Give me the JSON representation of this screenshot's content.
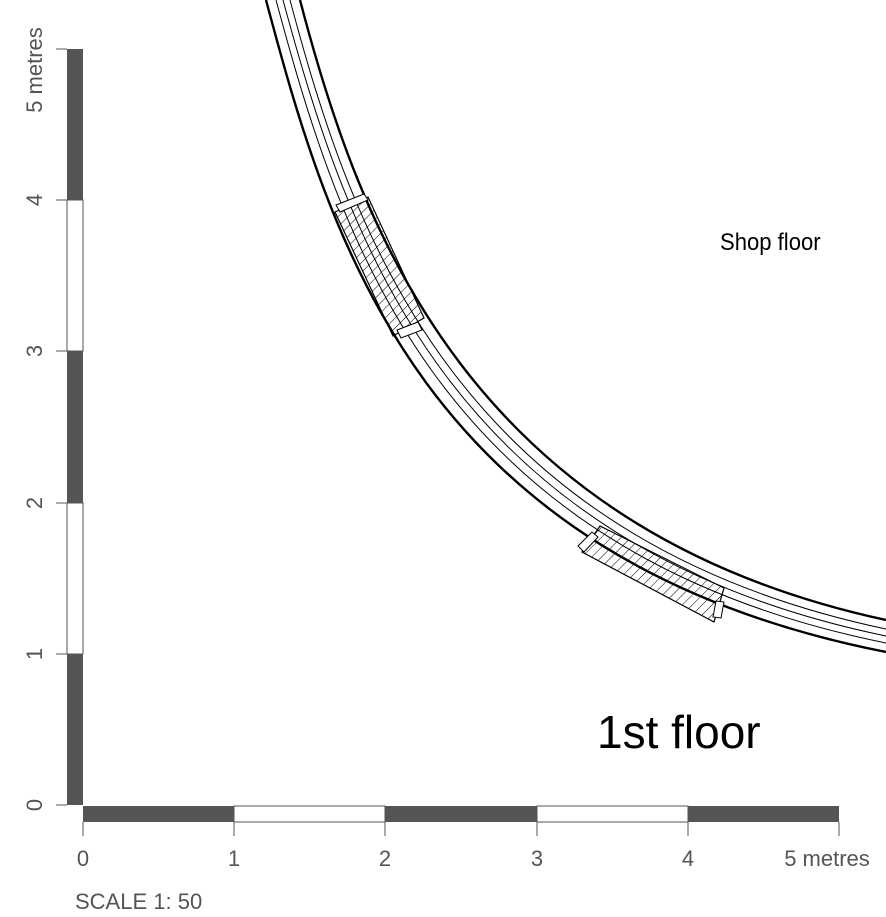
{
  "plan": {
    "room_label": "Shop floor",
    "floor_label": "1st floor",
    "scale_text": "SCALE 1: 50"
  },
  "scale_bar": {
    "x_ticks": [
      "0",
      "1",
      "2",
      "3",
      "4",
      "5 metres"
    ],
    "y_ticks": [
      "0",
      "1",
      "2",
      "3",
      "4",
      "5 metres"
    ],
    "dark_color": "#555555",
    "light_color": "#ffffff",
    "label_color": "#555555"
  }
}
